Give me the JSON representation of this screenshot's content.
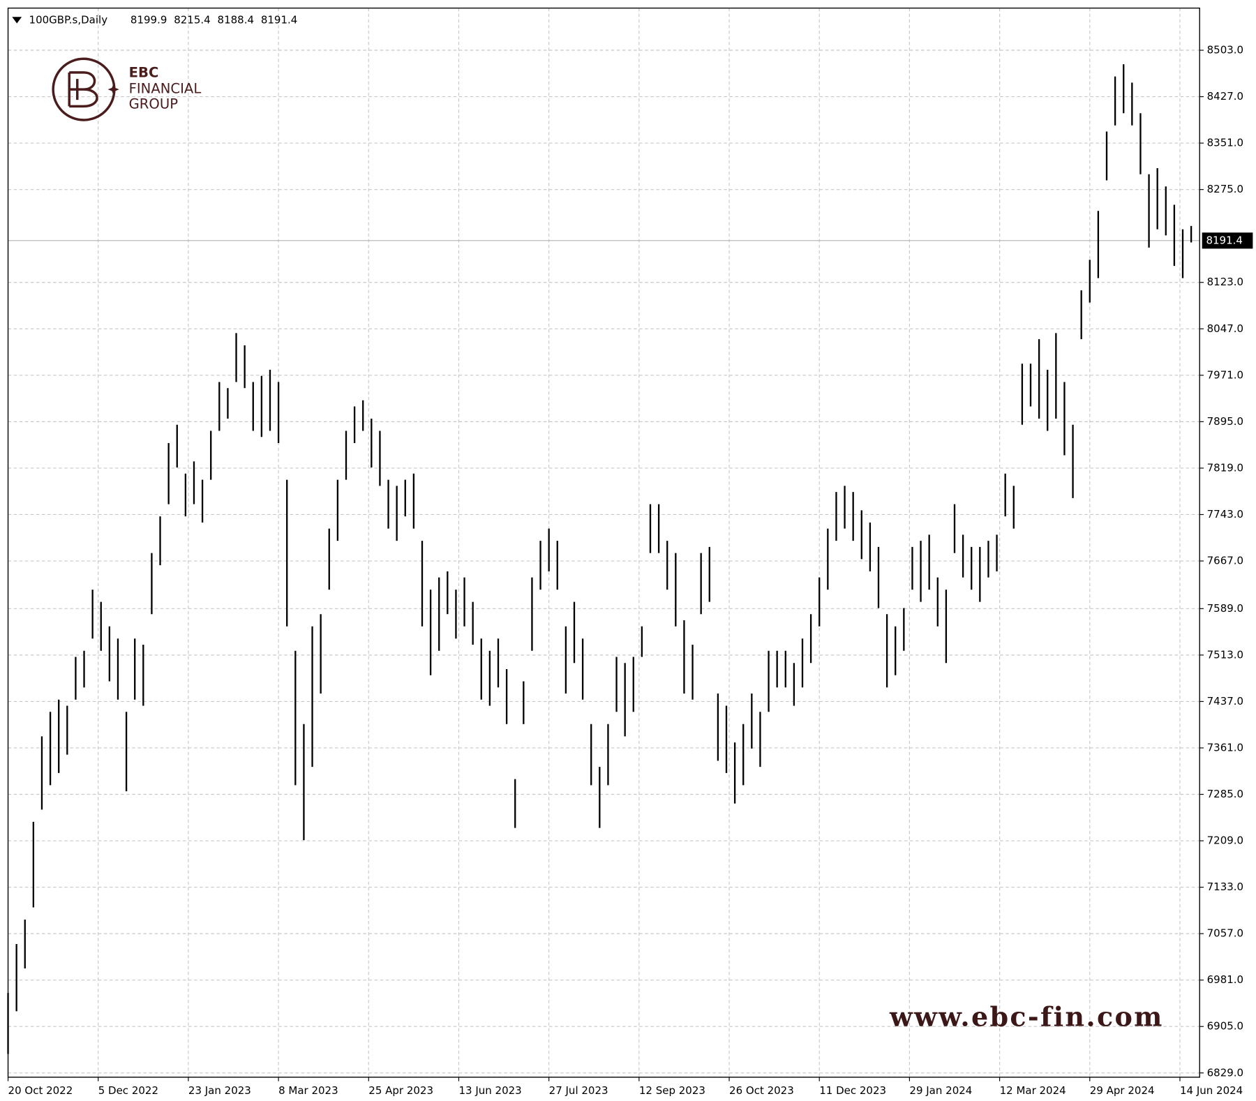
{
  "chart_data": {
    "type": "ohlc",
    "symbol": "100GBP.s,Daily",
    "header_values": [
      8199.9,
      8215.4,
      8188.4,
      8191.4
    ],
    "logo": {
      "brand": "EBC",
      "line1": "FINANCIAL",
      "line2": "GROUP"
    },
    "watermark": "www.ebc-fin.com",
    "last_price": 8191.4,
    "x": [
      0,
      3,
      6,
      9,
      12,
      15,
      18,
      21,
      24,
      27,
      30,
      33,
      36,
      39,
      42,
      45,
      48,
      51,
      54,
      57,
      60,
      63,
      66,
      69,
      72,
      75,
      78,
      81,
      84,
      87,
      90,
      93,
      96,
      99,
      102,
      105,
      108,
      111,
      114,
      117,
      120,
      123,
      126,
      129,
      132,
      135,
      138,
      141,
      144,
      147,
      150,
      153,
      156,
      159,
      162,
      165,
      168,
      171,
      174,
      177,
      180,
      183,
      186,
      189,
      192,
      195,
      198,
      201,
      204,
      207,
      210,
      213,
      216,
      219,
      222,
      225,
      228,
      231,
      234,
      237,
      240,
      243,
      246,
      249,
      252,
      255,
      258,
      261,
      264,
      267,
      270,
      273,
      276,
      279,
      282,
      285,
      288,
      291,
      294,
      297,
      300,
      303,
      306,
      309,
      312,
      315,
      318,
      321,
      324,
      327,
      330,
      333,
      336,
      339,
      342,
      345,
      348,
      351,
      354,
      357,
      360,
      363,
      366,
      369,
      372,
      375,
      378,
      381,
      384,
      387,
      390,
      393,
      396,
      399,
      402,
      405,
      408,
      411,
      414,
      417,
      420
    ],
    "high": [
      6960,
      7040,
      7080,
      7240,
      7380,
      7420,
      7440,
      7430,
      7510,
      7520,
      7620,
      7600,
      7560,
      7540,
      7420,
      7540,
      7530,
      7680,
      7740,
      7860,
      7890,
      7810,
      7830,
      7800,
      7880,
      7960,
      7950,
      8040,
      8020,
      7960,
      7970,
      7980,
      7960,
      7800,
      7520,
      7400,
      7560,
      7580,
      7720,
      7800,
      7880,
      7920,
      7930,
      7900,
      7880,
      7800,
      7790,
      7800,
      7810,
      7700,
      7620,
      7640,
      7650,
      7620,
      7640,
      7600,
      7540,
      7520,
      7540,
      7490,
      7310,
      7470,
      7640,
      7700,
      7720,
      7700,
      7560,
      7600,
      7540,
      7400,
      7330,
      7400,
      7510,
      7500,
      7510,
      7560,
      7760,
      7760,
      7700,
      7680,
      7570,
      7530,
      7680,
      7690,
      7450,
      7430,
      7370,
      7400,
      7450,
      7420,
      7520,
      7520,
      7520,
      7500,
      7540,
      7580,
      7640,
      7720,
      7780,
      7790,
      7780,
      7750,
      7730,
      7690,
      7580,
      7560,
      7590,
      7690,
      7700,
      7710,
      7640,
      7620,
      7760,
      7710,
      7690,
      7690,
      7700,
      7710,
      7810,
      7790,
      7990,
      7990,
      8030,
      7980,
      8040,
      7960,
      7890,
      8110,
      8160,
      8240,
      8370,
      8460,
      8480,
      8450,
      8400,
      8300,
      8310,
      8280,
      8250,
      8210,
      8215.4
    ],
    "low": [
      6860,
      6930,
      7000,
      7100,
      7260,
      7300,
      7320,
      7350,
      7440,
      7460,
      7540,
      7520,
      7470,
      7440,
      7290,
      7440,
      7430,
      7580,
      7660,
      7760,
      7820,
      7740,
      7760,
      7730,
      7800,
      7880,
      7900,
      7960,
      7950,
      7880,
      7870,
      7880,
      7860,
      7560,
      7300,
      7210,
      7330,
      7450,
      7620,
      7700,
      7800,
      7860,
      7880,
      7820,
      7790,
      7720,
      7700,
      7740,
      7720,
      7560,
      7480,
      7520,
      7580,
      7540,
      7560,
      7530,
      7440,
      7430,
      7460,
      7400,
      7230,
      7400,
      7520,
      7620,
      7650,
      7620,
      7450,
      7500,
      7440,
      7300,
      7230,
      7300,
      7420,
      7380,
      7420,
      7510,
      7680,
      7680,
      7620,
      7560,
      7450,
      7440,
      7580,
      7600,
      7340,
      7320,
      7270,
      7300,
      7360,
      7330,
      7420,
      7460,
      7460,
      7430,
      7460,
      7500,
      7560,
      7620,
      7700,
      7720,
      7700,
      7670,
      7650,
      7590,
      7460,
      7480,
      7520,
      7620,
      7600,
      7620,
      7560,
      7500,
      7680,
      7640,
      7620,
      7600,
      7640,
      7650,
      7740,
      7720,
      7890,
      7920,
      7900,
      7880,
      7900,
      7840,
      7770,
      8030,
      8090,
      8130,
      8290,
      8380,
      8400,
      8380,
      8300,
      8180,
      8210,
      8200,
      8150,
      8130,
      8188.4
    ],
    "color": "#000000",
    "xlim": [
      0,
      423
    ],
    "xticks": [
      {
        "value": 0,
        "label": "20 Oct 2022"
      },
      {
        "value": 32,
        "label": "5 Dec 2022"
      },
      {
        "value": 64,
        "label": "23 Jan 2023"
      },
      {
        "value": 96,
        "label": "8 Mar 2023"
      },
      {
        "value": 128,
        "label": "25 Apr 2023"
      },
      {
        "value": 160,
        "label": "13 Jun 2023"
      },
      {
        "value": 192,
        "label": "27 Jul 2023"
      },
      {
        "value": 224,
        "label": "12 Sep 2023"
      },
      {
        "value": 256,
        "label": "26 Oct 2023"
      },
      {
        "value": 288,
        "label": "11 Dec 2023"
      },
      {
        "value": 320,
        "label": "29 Jan 2024"
      },
      {
        "value": 352,
        "label": "12 Mar 2024"
      },
      {
        "value": 384,
        "label": "29 Apr 2024"
      },
      {
        "value": 416,
        "label": "14 Jun 2024"
      }
    ],
    "ylim": [
      6822,
      8572
    ],
    "yticks": [
      {
        "value": 6829,
        "label": "6829.0"
      },
      {
        "value": 6905,
        "label": "6905.0"
      },
      {
        "value": 6981,
        "label": "6981.0"
      },
      {
        "value": 7057,
        "label": "7057.0"
      },
      {
        "value": 7133,
        "label": "7133.0"
      },
      {
        "value": 7209,
        "label": "7209.0"
      },
      {
        "value": 7285,
        "label": "7285.0"
      },
      {
        "value": 7361,
        "label": "7361.0"
      },
      {
        "value": 7437,
        "label": "7437.0"
      },
      {
        "value": 7513,
        "label": "7513.0"
      },
      {
        "value": 7589,
        "label": "7589.0"
      },
      {
        "value": 7667,
        "label": "7667.0"
      },
      {
        "value": 7743,
        "label": "7743.0"
      },
      {
        "value": 7819,
        "label": "7819.0"
      },
      {
        "value": 7895,
        "label": "7895.0"
      },
      {
        "value": 7971,
        "label": "7971.0"
      },
      {
        "value": 8047,
        "label": "8047.0"
      },
      {
        "value": 8123,
        "label": "8123.0"
      },
      {
        "value": 8275,
        "label": "8275.0"
      },
      {
        "value": 8351,
        "label": "8351.0"
      },
      {
        "value": 8427,
        "label": "8427.0"
      },
      {
        "value": 8503,
        "label": "8503.0"
      }
    ],
    "grid": true
  }
}
